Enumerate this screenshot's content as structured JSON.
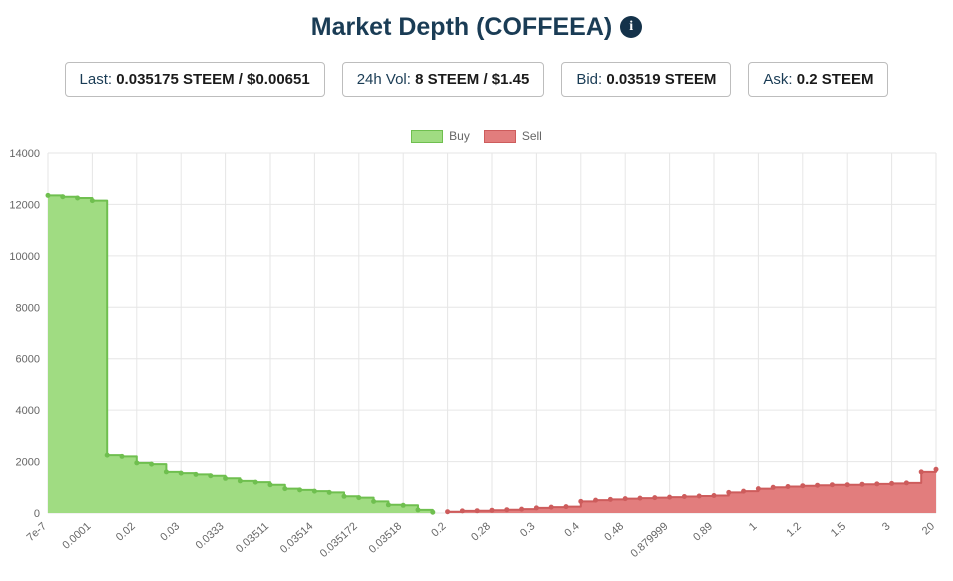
{
  "header": {
    "title": "Market Depth (COFFEEA)",
    "info_icon_glyph": "i"
  },
  "stats": [
    {
      "label": "Last:",
      "value": "0.035175 STEEM / $0.00651"
    },
    {
      "label": "24h Vol:",
      "value": "8 STEEM / $1.45"
    },
    {
      "label": "Bid:",
      "value": "0.03519 STEEM"
    },
    {
      "label": "Ask:",
      "value": "0.2 STEEM"
    }
  ],
  "legend": [
    {
      "label": "Buy",
      "color": "#a0dc82",
      "border": "#6fbf4f"
    },
    {
      "label": "Sell",
      "color": "#e27d7d",
      "border": "#cd5c5c"
    }
  ],
  "chart_data": {
    "type": "area",
    "title": "Market Depth (COFFEEA)",
    "xlabel": "",
    "ylabel": "",
    "ylim": [
      0,
      14000
    ],
    "y_ticks": [
      0,
      2000,
      4000,
      6000,
      8000,
      10000,
      12000,
      14000
    ],
    "grid": true,
    "legend_position": "top",
    "stepped": true,
    "total_points": 61,
    "ticks_every": 3,
    "x_tick_labels": [
      "7e-7",
      "0.0001",
      "0.02",
      "0.03",
      "0.0333",
      "0.03511",
      "0.03514",
      "0.035172",
      "0.03518",
      "0.2",
      "0.28",
      "0.3",
      "0.4",
      "0.48",
      "0.879999",
      "0.89",
      "1",
      "1.2",
      "1.5",
      "3",
      "20"
    ],
    "series": [
      {
        "name": "Buy",
        "start_index": 0,
        "fill": "#a0dc82",
        "line": "#6fbf4f",
        "values": [
          12350,
          12300,
          12250,
          12150,
          2250,
          2200,
          1950,
          1900,
          1600,
          1550,
          1500,
          1450,
          1350,
          1250,
          1200,
          1100,
          950,
          900,
          850,
          800,
          650,
          600,
          450,
          320,
          300,
          120,
          30
        ]
      },
      {
        "name": "Sell",
        "start_index": 27,
        "fill": "#e27d7d",
        "line": "#cd5c5c",
        "values": [
          50,
          80,
          90,
          110,
          130,
          150,
          200,
          230,
          250,
          450,
          500,
          530,
          560,
          580,
          600,
          620,
          640,
          660,
          680,
          800,
          850,
          950,
          1000,
          1030,
          1060,
          1080,
          1100,
          1100,
          1120,
          1130,
          1150,
          1170,
          1600,
          1700
        ]
      }
    ]
  }
}
